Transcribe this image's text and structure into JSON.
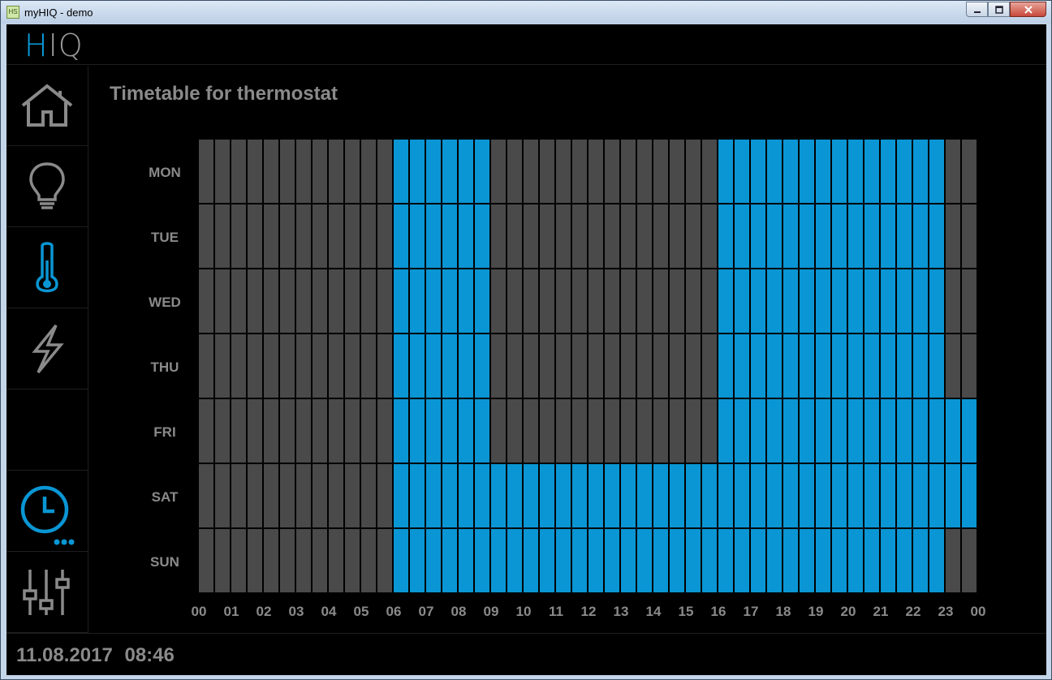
{
  "window": {
    "title": "myHIQ - demo",
    "icon_label": "HS"
  },
  "header": {
    "logo_h": "H",
    "logo_iq": "IQ"
  },
  "sidebar": {
    "items": [
      {
        "name": "home",
        "icon": "home-icon",
        "active": false
      },
      {
        "name": "lighting",
        "icon": "lightbulb-icon",
        "active": false
      },
      {
        "name": "heating",
        "icon": "thermometer-icon",
        "active": true
      },
      {
        "name": "energy",
        "icon": "lightning-icon",
        "active": false
      },
      {
        "name": "empty",
        "icon": "",
        "active": false
      },
      {
        "name": "timer",
        "icon": "clock-icon",
        "active": true
      },
      {
        "name": "settings",
        "icon": "sliders-icon",
        "active": false
      }
    ]
  },
  "page": {
    "title": "Timetable for thermostat"
  },
  "timetable": {
    "days": [
      "MON",
      "TUE",
      "WED",
      "THU",
      "FRI",
      "SAT",
      "SUN"
    ],
    "hour_labels": [
      "00",
      "01",
      "02",
      "03",
      "04",
      "05",
      "06",
      "07",
      "08",
      "09",
      "10",
      "11",
      "12",
      "13",
      "14",
      "15",
      "16",
      "17",
      "18",
      "19",
      "20",
      "21",
      "22",
      "23",
      "00"
    ],
    "slots_per_hour": 2,
    "schedule": {
      "MON": [
        [
          6,
          9
        ],
        [
          16,
          23
        ]
      ],
      "TUE": [
        [
          6,
          9
        ],
        [
          16,
          23
        ]
      ],
      "WED": [
        [
          6,
          9
        ],
        [
          16,
          23
        ]
      ],
      "THU": [
        [
          6,
          9
        ],
        [
          16,
          23
        ]
      ],
      "FRI": [
        [
          6,
          9
        ],
        [
          16,
          24
        ]
      ],
      "SAT": [
        [
          6,
          24
        ]
      ],
      "SUN": [
        [
          6,
          23
        ]
      ]
    },
    "colors": {
      "on": "#0a96d4",
      "off": "#4a4a4a"
    }
  },
  "footer": {
    "date": "11.08.2017",
    "time": "08:46"
  }
}
